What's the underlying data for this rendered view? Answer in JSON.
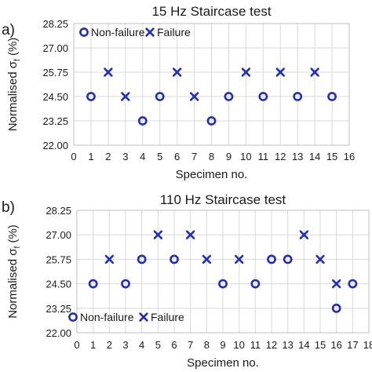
{
  "chart_data": [
    {
      "type": "scatter",
      "panel_label": "a)",
      "title": "15 Hz Staircase test",
      "xlabel": "Specimen no.",
      "ylabel_main": "Normalised σ",
      "ylabel_sub": "f",
      "ylabel_unit": " (%)",
      "xlim": [
        0,
        16
      ],
      "ylim": [
        22.0,
        28.25
      ],
      "x_ticks": [
        0,
        1,
        2,
        3,
        4,
        5,
        6,
        7,
        8,
        9,
        10,
        11,
        12,
        13,
        14,
        15,
        16
      ],
      "y_ticks": [
        "22.00",
        "23.25",
        "24.50",
        "25.75",
        "27.00",
        "28.25"
      ],
      "grid": true,
      "legend": "top-left",
      "series": [
        {
          "name": "Non-failure",
          "marker": "circle",
          "points": [
            [
              1,
              24.5
            ],
            [
              4,
              23.25
            ],
            [
              5,
              24.5
            ],
            [
              8,
              23.25
            ],
            [
              9,
              24.5
            ],
            [
              11,
              24.5
            ],
            [
              13,
              24.5
            ],
            [
              15,
              24.5
            ]
          ]
        },
        {
          "name": "Failure",
          "marker": "x",
          "points": [
            [
              2,
              25.75
            ],
            [
              3,
              24.5
            ],
            [
              6,
              25.75
            ],
            [
              7,
              24.5
            ],
            [
              10,
              25.75
            ],
            [
              12,
              25.75
            ],
            [
              14,
              25.75
            ]
          ]
        }
      ]
    },
    {
      "type": "scatter",
      "panel_label": "b)",
      "title": "110 Hz Staircase test",
      "xlabel": "Specimen no.",
      "ylabel_main": "Normalised σ",
      "ylabel_sub": "f",
      "ylabel_unit": " (%)",
      "xlim": [
        0,
        18
      ],
      "ylim": [
        22.0,
        28.25
      ],
      "x_ticks": [
        0,
        1,
        2,
        3,
        4,
        5,
        6,
        7,
        8,
        9,
        10,
        11,
        12,
        13,
        14,
        15,
        16,
        17,
        18
      ],
      "y_ticks": [
        "22.00",
        "23.25",
        "24.50",
        "25.75",
        "27.00",
        "28.25"
      ],
      "grid": true,
      "legend": "bottom-left",
      "series": [
        {
          "name": "Non-failure",
          "marker": "circle",
          "points": [
            [
              1,
              24.5
            ],
            [
              3,
              24.5
            ],
            [
              4,
              25.75
            ],
            [
              6,
              25.75
            ],
            [
              9,
              24.5
            ],
            [
              11,
              24.5
            ],
            [
              12,
              25.75
            ],
            [
              13,
              25.75
            ],
            [
              16,
              23.25
            ],
            [
              17,
              24.5
            ]
          ]
        },
        {
          "name": "Failure",
          "marker": "x",
          "points": [
            [
              2,
              25.75
            ],
            [
              5,
              27.0
            ],
            [
              7,
              27.0
            ],
            [
              8,
              25.75
            ],
            [
              10,
              25.75
            ],
            [
              14,
              27.0
            ],
            [
              15,
              25.75
            ],
            [
              16,
              24.5
            ]
          ]
        }
      ]
    }
  ],
  "colors": {
    "marker": "#1f2fb8",
    "grid": "#d9d9d9",
    "axis": "#bfbfbf",
    "text": "#1a1a1a"
  }
}
